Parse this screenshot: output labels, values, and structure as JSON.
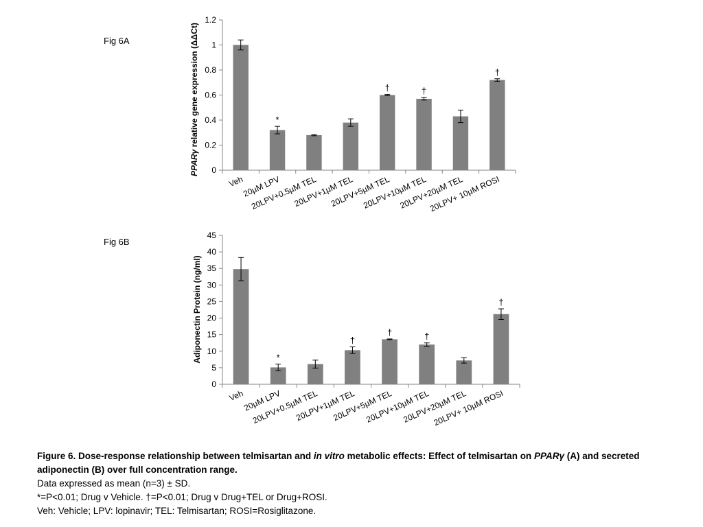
{
  "fig_a_label": "Fig 6A",
  "fig_b_label": "Fig 6B",
  "chart_data": [
    {
      "type": "bar",
      "categories": [
        "Veh",
        "20µM LPV",
        "20LPV+0.5µM TEL",
        "20LPV+1µM TEL",
        "20LPV+5µM TEL",
        "20LPV+10µM TEL",
        "20LPV+20µM TEL",
        "20LPV+ 10µM ROSI"
      ],
      "values": [
        1.0,
        0.32,
        0.28,
        0.38,
        0.6,
        0.57,
        0.43,
        0.72
      ],
      "errors": [
        0.04,
        0.03,
        0.005,
        0.03,
        0.005,
        0.01,
        0.05,
        0.01
      ],
      "annotations": [
        "",
        "*",
        "",
        "",
        "†",
        "†",
        "",
        "†"
      ],
      "ylabel_italic": "PPARγ",
      "ylabel": " relative gene expression (ΔΔCt)",
      "ylim": [
        0,
        1.2
      ],
      "yticks": [
        "0",
        "0.2",
        "0.4",
        "0.6",
        "0.8",
        "1",
        "1.2"
      ],
      "grid": false
    },
    {
      "type": "bar",
      "categories": [
        "Veh",
        "20µM LPV",
        "20LPV+0.5µM TEL",
        "20LPV+1µM TEL",
        "20LPV+5µM TEL",
        "20LPV+10µM TEL",
        "20LPV+20µM TEL",
        "20LPV+ 10µM ROSI"
      ],
      "values": [
        34.8,
        5.1,
        6.1,
        10.3,
        13.6,
        12.0,
        7.2,
        21.2
      ],
      "errors": [
        3.5,
        1.0,
        1.2,
        1.0,
        0.1,
        0.5,
        0.8,
        1.6
      ],
      "annotations": [
        "",
        "*",
        "",
        "†",
        "†",
        "†",
        "",
        "†"
      ],
      "ylabel_italic": "",
      "ylabel": "Adiponectin Protein (ng/ml)",
      "ylim": [
        0,
        45
      ],
      "yticks": [
        "0",
        "5",
        "10",
        "15",
        "20",
        "25",
        "30",
        "35",
        "40",
        "45"
      ],
      "grid": false
    }
  ],
  "caption": {
    "line1_a": "Figure 6. Dose-response relationship between telmisartan and ",
    "line1_b": "in vitro",
    "line1_c": " metabolic effects: Effect of telmisartan on ",
    "line1_d": "PPARγ",
    "line1_e": " (A) and secreted adiponectin (B) over full concentration range.",
    "line2": "Data expressed as mean (n=3) ± SD.",
    "line3": "*=P<0.01; Drug v Vehicle. †=P<0.01; Drug v Drug+TEL or Drug+ROSI.",
    "line4": "Veh: Vehicle; LPV: lopinavir; TEL: Telmisartan; ROSI=Rosiglitazone."
  },
  "colors": {
    "bar": "#808080",
    "axis": "#868686"
  }
}
